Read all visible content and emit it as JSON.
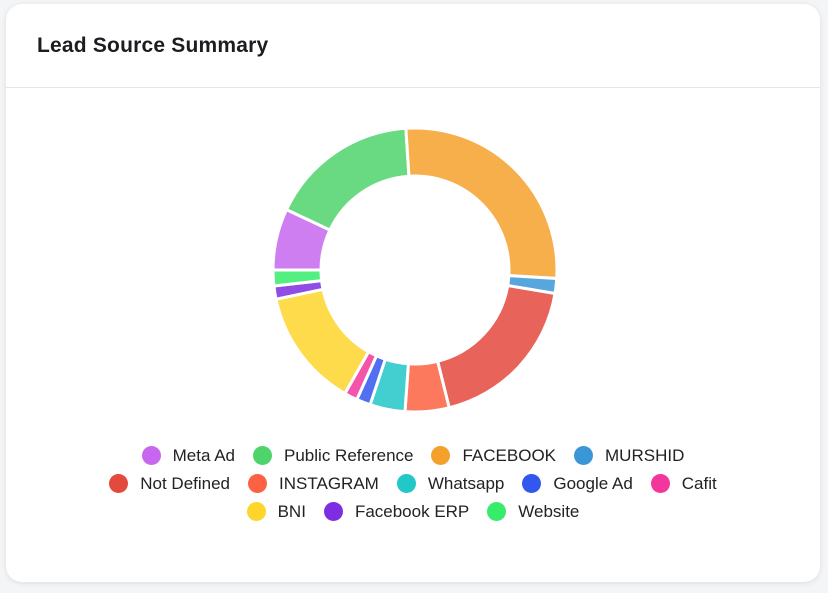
{
  "chart_data": {
    "type": "doughnut",
    "title": "Lead Source Summary",
    "categories": [
      "Meta Ad",
      "Public Reference",
      "FACEBOOK",
      "MURSHID",
      "Not Defined",
      "INSTAGRAM",
      "Whatsapp",
      "Google Ad",
      "Cafit",
      "BNI",
      "Facebook ERP",
      "Website"
    ],
    "values": [
      7,
      17,
      27,
      1.7,
      18.5,
      5,
      4,
      1.6,
      1.5,
      13.5,
      1.5,
      1.8
    ],
    "colors": [
      "#c767ef",
      "#4fd46c",
      "#f4a12b",
      "#3b96d8",
      "#e4493d",
      "#fb6142",
      "#22c7c7",
      "#3157ef",
      "#f2369b",
      "#fed52a",
      "#7d2ee0",
      "#36ec6b"
    ]
  }
}
